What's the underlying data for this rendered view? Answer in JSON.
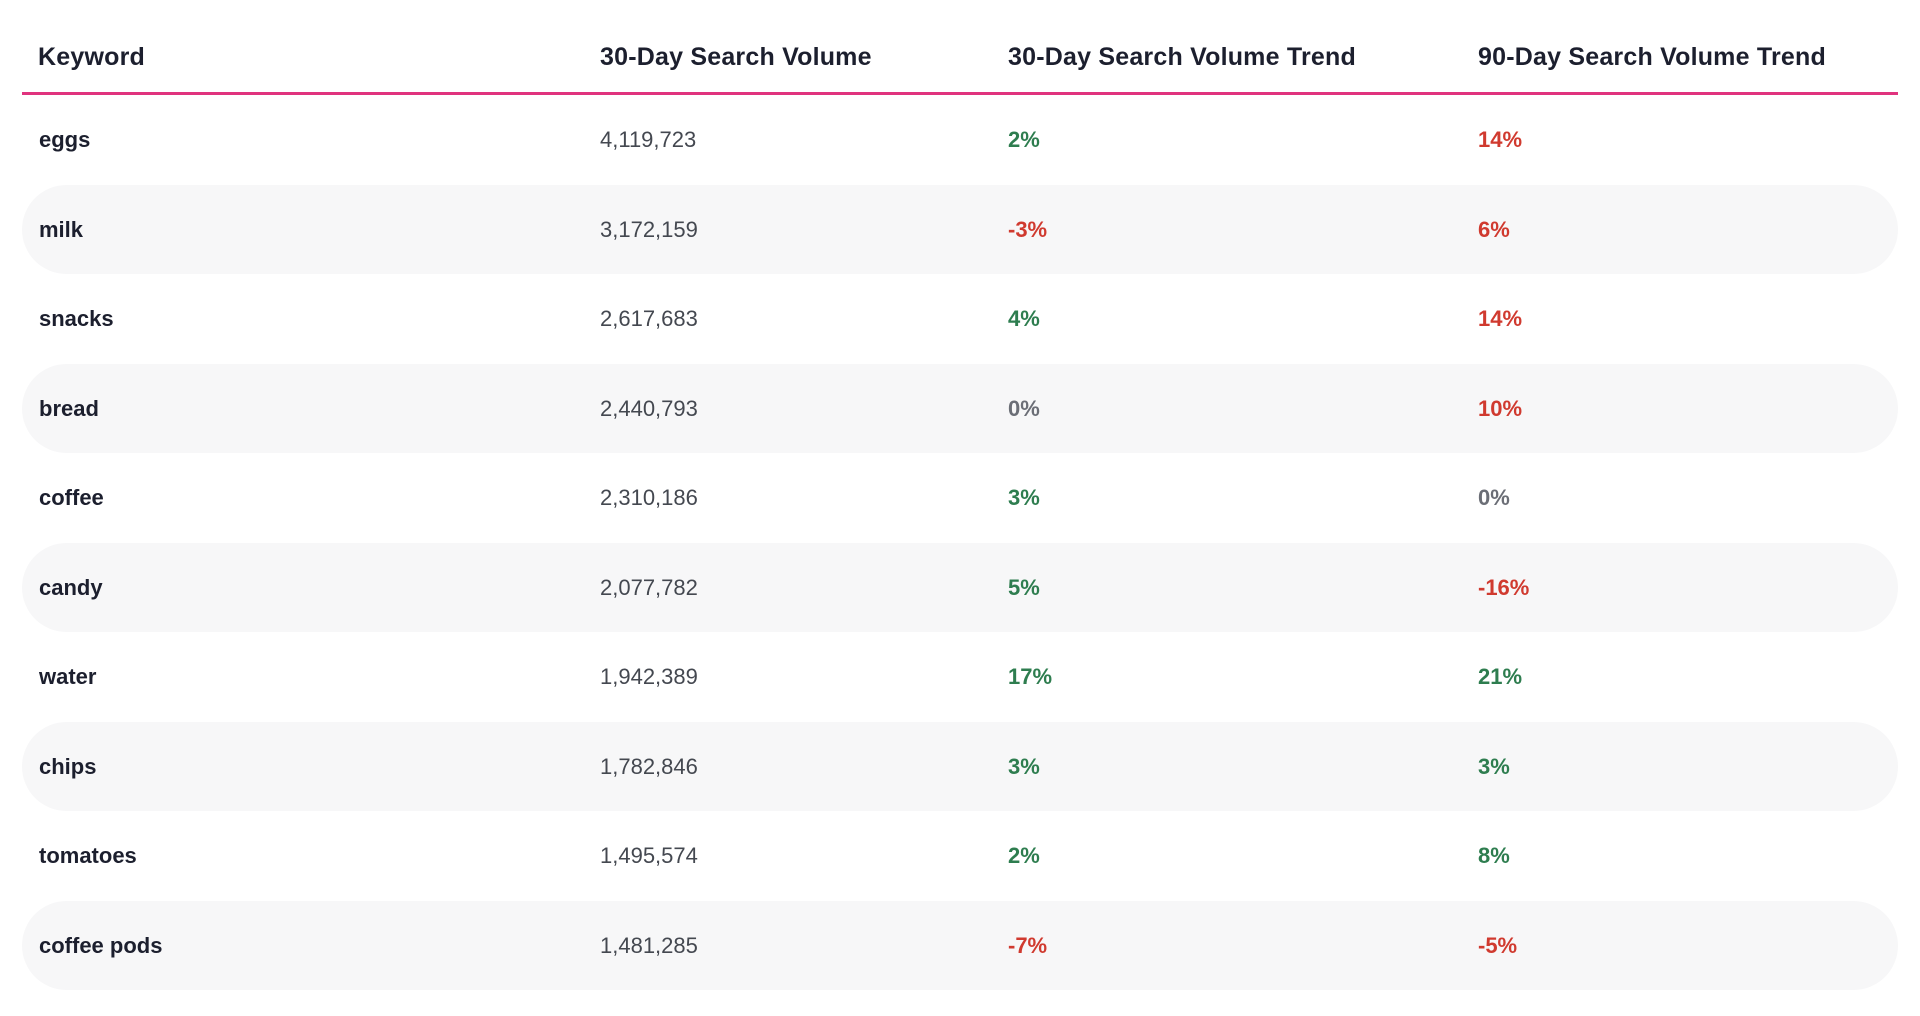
{
  "chart_data": {
    "type": "table",
    "columns": [
      "Keyword",
      "30-Day Search Volume",
      "30-Day Search Volume Trend",
      "90-Day Search Volume Trend"
    ],
    "rows": [
      {
        "keyword": "eggs",
        "volume": "4,119,723",
        "trend30": "2%",
        "trend90": "14%",
        "trend30_color": "#2e7d4f",
        "trend90_color": "#d03a2f"
      },
      {
        "keyword": "milk",
        "volume": "3,172,159",
        "trend30": "-3%",
        "trend90": "6%",
        "trend30_color": "#d03a2f",
        "trend90_color": "#d03a2f"
      },
      {
        "keyword": "snacks",
        "volume": "2,617,683",
        "trend30": "4%",
        "trend90": "14%",
        "trend30_color": "#2e7d4f",
        "trend90_color": "#d03a2f"
      },
      {
        "keyword": "bread",
        "volume": "2,440,793",
        "trend30": "0%",
        "trend90": "10%",
        "trend30_color": "#6b6e76",
        "trend90_color": "#d03a2f"
      },
      {
        "keyword": "coffee",
        "volume": "2,310,186",
        "trend30": "3%",
        "trend90": "0%",
        "trend30_color": "#2e7d4f",
        "trend90_color": "#6b6e76"
      },
      {
        "keyword": "candy",
        "volume": "2,077,782",
        "trend30": "5%",
        "trend90": "-16%",
        "trend30_color": "#2e7d4f",
        "trend90_color": "#d03a2f"
      },
      {
        "keyword": "water",
        "volume": "1,942,389",
        "trend30": "17%",
        "trend90": "21%",
        "trend30_color": "#2e7d4f",
        "trend90_color": "#2e7d4f"
      },
      {
        "keyword": "chips",
        "volume": "1,782,846",
        "trend30": "3%",
        "trend90": "3%",
        "trend30_color": "#2e7d4f",
        "trend90_color": "#2e7d4f"
      },
      {
        "keyword": "tomatoes",
        "volume": "1,495,574",
        "trend30": "2%",
        "trend90": "8%",
        "trend30_color": "#2e7d4f",
        "trend90_color": "#2e7d4f"
      },
      {
        "keyword": "coffee pods",
        "volume": "1,481,285",
        "trend30": "-7%",
        "trend90": "-5%",
        "trend30_color": "#d03a2f",
        "trend90_color": "#d03a2f"
      }
    ],
    "header_rule_color": "#e0337e",
    "shaded_row_color": "#f7f7f8"
  }
}
